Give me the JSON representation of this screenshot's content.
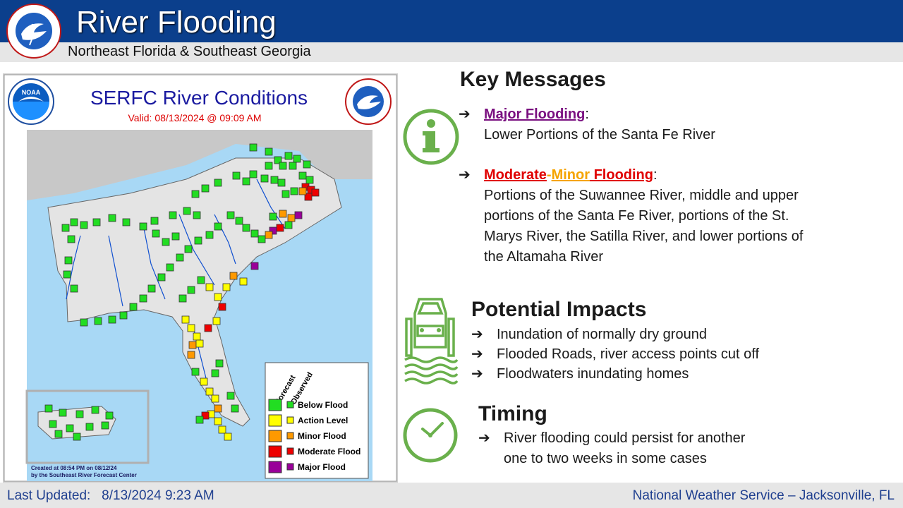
{
  "header": {
    "title": "River Flooding",
    "subtitle": "Northeast Florida & Southeast Georgia",
    "logo_text": "NATIONAL WEATHER SERVICE"
  },
  "map": {
    "title": "SERFC River Conditions",
    "valid": "Valid: 08/13/2024 @ 09:09 AM",
    "noaa_logo_text": "NOAA",
    "legend": {
      "col_forecast": "Forecast",
      "col_observed": "Observed",
      "items": [
        {
          "label": "Below Flood",
          "color": "#22dd22"
        },
        {
          "label": "Action Level",
          "color": "#ffff00"
        },
        {
          "label": "Minor Flood",
          "color": "#ff9900"
        },
        {
          "label": "Moderate Flood",
          "color": "#ee0000"
        },
        {
          "label": "Major Flood",
          "color": "#990099"
        }
      ]
    },
    "created_line1": "Created at 08:54 PM on 08/12/24",
    "created_line2": "by the Southeast River Forecast Center"
  },
  "key_messages": {
    "heading": "Key Messages",
    "arrow": "➔",
    "major": {
      "label": "Major Flooding",
      "colon": ":",
      "text": "Lower Portions of the Santa Fe River"
    },
    "moderate_minor": {
      "label_moderate": "Moderate",
      "dash": "-",
      "label_minor": "Minor",
      "label_flooding": " Flooding",
      "colon": ":",
      "lines": [
        "Portions of the Suwannee River, middle and upper",
        "portions of the Santa Fe River, portions of the St.",
        "Marys River, the Satilla River, and lower portions of",
        "the Altamaha River"
      ]
    }
  },
  "impacts": {
    "heading": "Potential Impacts",
    "items": [
      "Inundation of normally dry ground",
      "Flooded Roads, river access points cut off",
      "Floodwaters inundating homes"
    ]
  },
  "timing": {
    "heading": "Timing",
    "lines": [
      "River flooding could persist for another",
      "one to two weeks in some cases"
    ]
  },
  "footer": {
    "updated_label": "Last Updated:",
    "updated_value": "8/13/2024 9:23 AM",
    "office": "National Weather Service – Jacksonville, FL"
  },
  "icons": {
    "info": "info-circle-icon",
    "car_flood": "flooded-car-icon",
    "clock": "clock-icon"
  },
  "colors": {
    "header_blue": "#0b3f8c",
    "icon_green": "#6ab04c",
    "major_purple": "#7a1080",
    "moderate_red": "#e00000",
    "minor_orange": "#f5a400"
  }
}
